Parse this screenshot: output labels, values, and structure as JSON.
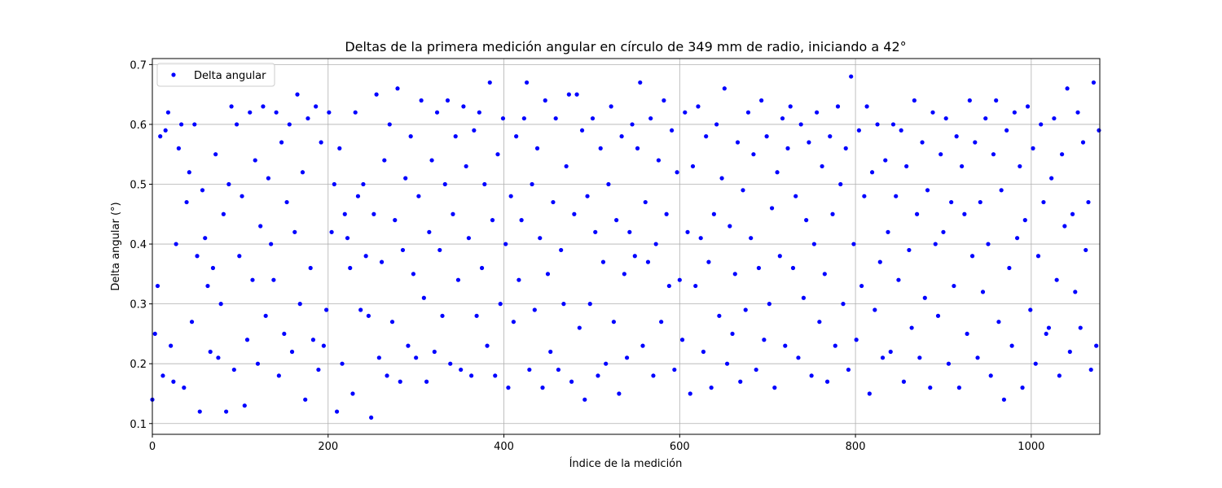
{
  "chart_data": {
    "type": "scatter",
    "title": "Deltas de la primera medición angular en círculo de 349 mm de radio, iniciando a 42°",
    "xlabel": "Índice de la medición",
    "ylabel": "Delta angular (°)",
    "xlim": [
      0,
      1078
    ],
    "ylim": [
      0.082,
      0.71
    ],
    "xticks": [
      0,
      200,
      400,
      600,
      800,
      1000
    ],
    "yticks": [
      0.1,
      0.2,
      0.3,
      0.4,
      0.5,
      0.6,
      0.7
    ],
    "grid": true,
    "legend": "upper left",
    "series": [
      {
        "name": "Delta angular",
        "color": "blue",
        "x": [
          0,
          3,
          6,
          9,
          12,
          15,
          18,
          21,
          24,
          27,
          30,
          33,
          36,
          39,
          42,
          45,
          48,
          51,
          54,
          57,
          60,
          63,
          66,
          69,
          72,
          75,
          78,
          81,
          84,
          87,
          90,
          93,
          96,
          99,
          102,
          105,
          108,
          111,
          114,
          117,
          120,
          123,
          126,
          129,
          132,
          135,
          138,
          141,
          144,
          147,
          150,
          153,
          156,
          159,
          162,
          165,
          168,
          171,
          174,
          177,
          180,
          183,
          186,
          189,
          192,
          195,
          198,
          201,
          204,
          207,
          210,
          213,
          216,
          219,
          222,
          225,
          228,
          231,
          234,
          237,
          240,
          243,
          246,
          249,
          252,
          255,
          258,
          261,
          264,
          267,
          270,
          273,
          276,
          279,
          282,
          285,
          288,
          291,
          294,
          297,
          300,
          303,
          306,
          309,
          312,
          315,
          318,
          321,
          324,
          327,
          330,
          333,
          336,
          339,
          342,
          345,
          348,
          351,
          354,
          357,
          360,
          363,
          366,
          369,
          372,
          375,
          378,
          381,
          384,
          387,
          390,
          393,
          396,
          399,
          402,
          405,
          408,
          411,
          414,
          417,
          420,
          423,
          426,
          429,
          432,
          435,
          438,
          441,
          444,
          447,
          450,
          453,
          456,
          459,
          462,
          465,
          468,
          471,
          474,
          477,
          480,
          483,
          486,
          489,
          492,
          495,
          498,
          501,
          504,
          507,
          510,
          513,
          516,
          519,
          522,
          525,
          528,
          531,
          534,
          537,
          540,
          543,
          546,
          549,
          552,
          555,
          558,
          561,
          564,
          567,
          570,
          573,
          576,
          579,
          582,
          585,
          588,
          591,
          594,
          597,
          600,
          603,
          606,
          609,
          612,
          615,
          618,
          621,
          624,
          627,
          630,
          633,
          636,
          639,
          642,
          645,
          648,
          651,
          654,
          657,
          660,
          663,
          666,
          669,
          672,
          675,
          678,
          681,
          684,
          687,
          690,
          693,
          696,
          699,
          702,
          705,
          708,
          711,
          714,
          717,
          720,
          723,
          726,
          729,
          732,
          735,
          738,
          741,
          744,
          747,
          750,
          753,
          756,
          759,
          762,
          765,
          768,
          771,
          774,
          777,
          780,
          783,
          786,
          789,
          792,
          795,
          798,
          801,
          804,
          807,
          810,
          813,
          816,
          819,
          822,
          825,
          828,
          831,
          834,
          837,
          840,
          843,
          846,
          849,
          852,
          855,
          858,
          861,
          864,
          867,
          870,
          873,
          876,
          879,
          882,
          885,
          888,
          891,
          894,
          897,
          900,
          903,
          906,
          909,
          912,
          915,
          918,
          921,
          924,
          927,
          930,
          933,
          936,
          939,
          942,
          945,
          948,
          951,
          954,
          957,
          960,
          963,
          966,
          969,
          972,
          975,
          978,
          981,
          984,
          987,
          990,
          993,
          996,
          999,
          1002,
          1005,
          1008,
          1011,
          1014,
          1017,
          1020,
          1023,
          1026,
          1029,
          1032,
          1035,
          1038,
          1041,
          1044,
          1047,
          1050,
          1053,
          1056,
          1059,
          1062,
          1065,
          1068,
          1071,
          1074,
          1077
        ],
        "values": [
          0.14,
          0.25,
          0.33,
          0.58,
          0.18,
          0.59,
          0.62,
          0.23,
          0.17,
          0.4,
          0.56,
          0.6,
          0.16,
          0.47,
          0.52,
          0.27,
          0.6,
          0.38,
          0.12,
          0.49,
          0.41,
          0.33,
          0.22,
          0.36,
          0.55,
          0.21,
          0.3,
          0.45,
          0.12,
          0.5,
          0.63,
          0.19,
          0.6,
          0.38,
          0.48,
          0.13,
          0.24,
          0.62,
          0.34,
          0.54,
          0.2,
          0.43,
          0.63,
          0.28,
          0.51,
          0.4,
          0.34,
          0.62,
          0.18,
          0.57,
          0.25,
          0.47,
          0.6,
          0.22,
          0.42,
          0.65,
          0.3,
          0.52,
          0.14,
          0.61,
          0.36,
          0.24,
          0.63,
          0.19,
          0.57,
          0.23,
          0.29,
          0.62,
          0.42,
          0.5,
          0.12,
          0.56,
          0.2,
          0.45,
          0.41,
          0.36,
          0.15,
          0.62,
          0.48,
          0.29,
          0.5,
          0.38,
          0.28,
          0.11,
          0.45,
          0.65,
          0.21,
          0.37,
          0.54,
          0.18,
          0.6,
          0.27,
          0.44,
          0.66,
          0.17,
          0.39,
          0.51,
          0.23,
          0.58,
          0.35,
          0.21,
          0.48,
          0.64,
          0.31,
          0.17,
          0.42,
          0.54,
          0.22,
          0.62,
          0.39,
          0.28,
          0.5,
          0.64,
          0.2,
          0.45,
          0.58,
          0.34,
          0.19,
          0.63,
          0.53,
          0.41,
          0.18,
          0.59,
          0.28,
          0.62,
          0.36,
          0.5,
          0.23,
          0.67,
          0.44,
          0.18,
          0.55,
          0.3,
          0.61,
          0.4,
          0.16,
          0.48,
          0.27,
          0.58,
          0.34,
          0.44,
          0.61,
          0.67,
          0.19,
          0.5,
          0.29,
          0.56,
          0.41,
          0.16,
          0.64,
          0.35,
          0.22,
          0.47,
          0.61,
          0.19,
          0.39,
          0.3,
          0.53,
          0.65,
          0.17,
          0.45,
          0.65,
          0.26,
          0.59,
          0.14,
          0.48,
          0.3,
          0.61,
          0.42,
          0.18,
          0.56,
          0.37,
          0.2,
          0.5,
          0.63,
          0.27,
          0.44,
          0.15,
          0.58,
          0.35,
          0.21,
          0.42,
          0.6,
          0.38,
          0.56,
          0.67,
          0.23,
          0.47,
          0.37,
          0.61,
          0.18,
          0.4,
          0.54,
          0.27,
          0.64,
          0.45,
          0.33,
          0.59,
          0.19,
          0.52,
          0.34,
          0.24,
          0.62,
          0.42,
          0.15,
          0.53,
          0.33,
          0.63,
          0.41,
          0.22,
          0.58,
          0.37,
          0.16,
          0.45,
          0.6,
          0.28,
          0.51,
          0.66,
          0.2,
          0.43,
          0.25,
          0.35,
          0.57,
          0.17,
          0.49,
          0.29,
          0.62,
          0.41,
          0.55,
          0.19,
          0.36,
          0.64,
          0.24,
          0.58,
          0.3,
          0.46,
          0.16,
          0.52,
          0.38,
          0.61,
          0.23,
          0.56,
          0.63,
          0.36,
          0.48,
          0.21,
          0.6,
          0.31,
          0.44,
          0.57,
          0.18,
          0.4,
          0.62,
          0.27,
          0.53,
          0.35,
          0.17,
          0.58,
          0.45,
          0.23,
          0.63,
          0.5,
          0.3,
          0.56,
          0.19,
          0.68,
          0.4,
          0.24,
          0.59,
          0.33,
          0.48,
          0.63,
          0.15,
          0.52,
          0.29,
          0.6,
          0.37,
          0.21,
          0.54,
          0.42,
          0.22,
          0.6,
          0.48,
          0.34,
          0.59,
          0.17,
          0.53,
          0.39,
          0.26,
          0.64,
          0.45,
          0.21,
          0.57,
          0.31,
          0.49,
          0.16,
          0.62,
          0.4,
          0.28,
          0.55,
          0.42,
          0.61,
          0.2,
          0.47,
          0.33,
          0.58,
          0.16,
          0.53,
          0.45,
          0.25,
          0.64,
          0.38,
          0.57,
          0.21,
          0.47,
          0.32,
          0.61,
          0.4,
          0.18,
          0.55,
          0.64,
          0.27,
          0.49,
          0.14,
          0.59,
          0.36,
          0.23,
          0.62,
          0.41,
          0.53,
          0.16,
          0.44,
          0.63,
          0.29,
          0.56,
          0.2,
          0.38,
          0.6,
          0.47,
          0.25,
          0.26,
          0.51,
          0.61,
          0.34,
          0.18,
          0.55,
          0.43,
          0.66,
          0.22,
          0.45,
          0.32,
          0.62,
          0.26,
          0.57,
          0.39,
          0.47,
          0.19,
          0.67,
          0.23,
          0.59
        ]
      }
    ]
  }
}
